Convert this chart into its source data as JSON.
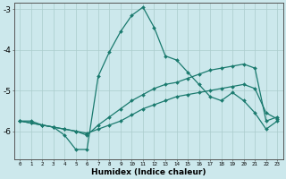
{
  "xlabel": "Humidex (Indice chaleur)",
  "background_color": "#cce8ec",
  "grid_color": "#aacccc",
  "line_color": "#1a7a6e",
  "x_ticks": [
    0,
    1,
    2,
    3,
    4,
    5,
    6,
    7,
    8,
    9,
    10,
    11,
    12,
    13,
    14,
    15,
    16,
    17,
    18,
    19,
    20,
    21,
    22,
    23
  ],
  "ylim": [
    -6.7,
    -2.85
  ],
  "xlim": [
    -0.5,
    23.5
  ],
  "yticks": [
    -6,
    -5,
    -4,
    -3
  ],
  "series": [
    {
      "x": [
        0,
        1,
        2,
        3,
        4,
        5,
        6,
        7,
        8,
        9,
        10,
        11,
        12,
        13,
        14,
        15,
        16,
        17,
        18,
        19,
        20,
        21,
        22,
        23
      ],
      "y": [
        -5.75,
        -5.75,
        -5.85,
        -5.9,
        -6.1,
        -6.45,
        -6.45,
        -4.65,
        -4.05,
        -3.55,
        -3.15,
        -2.95,
        -3.45,
        -4.15,
        -4.25,
        -4.55,
        -4.85,
        -5.15,
        -5.25,
        -5.05,
        -5.25,
        -5.55,
        -5.95,
        -5.75
      ]
    },
    {
      "x": [
        0,
        1,
        2,
        3,
        4,
        5,
        6,
        7,
        8,
        9,
        10,
        11,
        12,
        13,
        14,
        15,
        16,
        17,
        18,
        19,
        20,
        21,
        22,
        23
      ],
      "y": [
        -5.75,
        -5.8,
        -5.85,
        -5.9,
        -5.95,
        -6.0,
        -6.05,
        -5.95,
        -5.85,
        -5.75,
        -5.6,
        -5.45,
        -5.35,
        -5.25,
        -5.15,
        -5.1,
        -5.05,
        -5.0,
        -4.95,
        -4.9,
        -4.85,
        -4.95,
        -5.55,
        -5.7
      ]
    },
    {
      "x": [
        0,
        1,
        2,
        3,
        4,
        5,
        6,
        7,
        8,
        9,
        10,
        11,
        12,
        13,
        14,
        15,
        16,
        17,
        18,
        19,
        20,
        21,
        22,
        23
      ],
      "y": [
        -5.75,
        -5.8,
        -5.85,
        -5.9,
        -5.95,
        -6.0,
        -6.1,
        -5.85,
        -5.65,
        -5.45,
        -5.25,
        -5.1,
        -4.95,
        -4.85,
        -4.8,
        -4.7,
        -4.6,
        -4.5,
        -4.45,
        -4.4,
        -4.35,
        -4.45,
        -5.75,
        -5.65
      ]
    }
  ]
}
